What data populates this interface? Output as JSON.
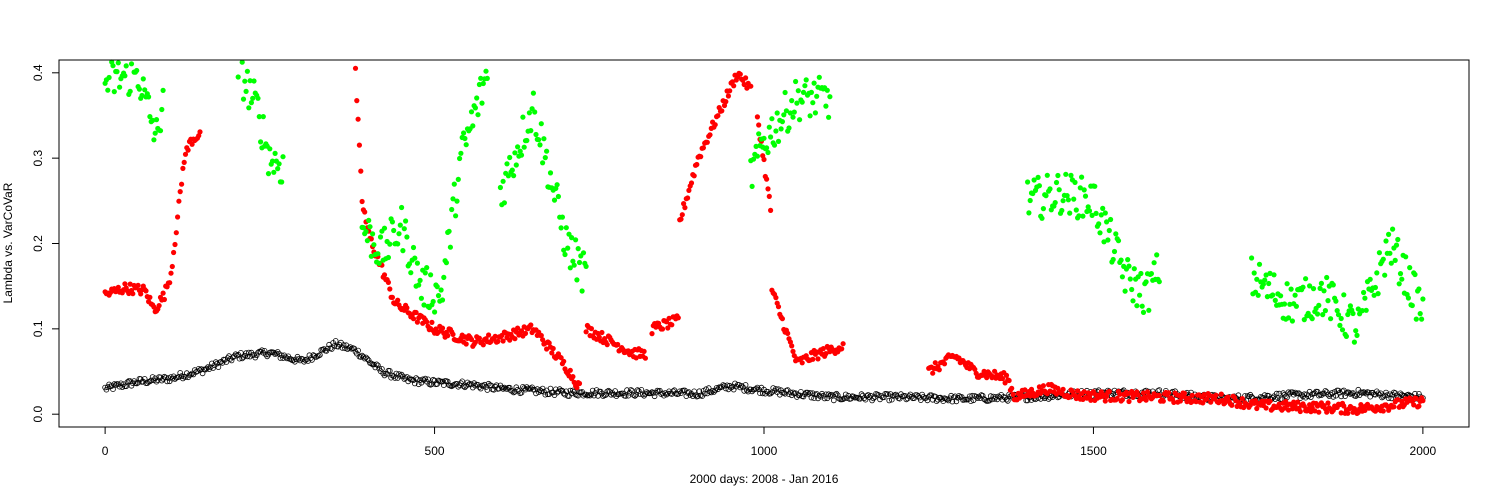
{
  "chart_data": {
    "type": "scatter",
    "title": "",
    "xlabel": "2000 days: 2008 - Jan 2016",
    "ylabel": "Lambda vs. VarCoVaR",
    "xlim": [
      -70,
      2070
    ],
    "ylim": [
      -0.015,
      0.415
    ],
    "xticks": [
      0,
      500,
      1000,
      1500,
      2000
    ],
    "yticks": [
      0.0,
      0.1,
      0.2,
      0.3,
      0.4
    ],
    "ytick_labels": [
      "0.0",
      "0.1",
      "0.2",
      "0.3",
      "0.4"
    ],
    "grid": false,
    "legend": "none",
    "n_days": 2000,
    "series": [
      {
        "color": "#000000",
        "marker": "open-circle",
        "profile": [
          [
            0,
            0.03
          ],
          [
            50,
            0.038
          ],
          [
            100,
            0.042
          ],
          [
            150,
            0.052
          ],
          [
            200,
            0.068
          ],
          [
            250,
            0.072
          ],
          [
            300,
            0.062
          ],
          [
            350,
            0.082
          ],
          [
            380,
            0.075
          ],
          [
            420,
            0.05
          ],
          [
            460,
            0.04
          ],
          [
            500,
            0.037
          ],
          [
            550,
            0.035
          ],
          [
            600,
            0.03
          ],
          [
            700,
            0.025
          ],
          [
            800,
            0.025
          ],
          [
            900,
            0.024
          ],
          [
            950,
            0.033
          ],
          [
            1000,
            0.028
          ],
          [
            1100,
            0.02
          ],
          [
            1200,
            0.02
          ],
          [
            1300,
            0.018
          ],
          [
            1400,
            0.02
          ],
          [
            1500,
            0.025
          ],
          [
            1600,
            0.025
          ],
          [
            1700,
            0.018
          ],
          [
            1800,
            0.022
          ],
          [
            1900,
            0.025
          ],
          [
            2000,
            0.02
          ]
        ]
      },
      {
        "color": "#ff0000",
        "marker": "filled-circle",
        "profile": [
          [
            0,
            0.14
          ],
          [
            30,
            0.148
          ],
          [
            60,
            0.145
          ],
          [
            75,
            0.122
          ],
          [
            90,
            0.14
          ],
          [
            100,
            0.165
          ],
          [
            110,
            0.23
          ],
          [
            120,
            0.3
          ],
          [
            130,
            0.32
          ],
          [
            145,
            0.33
          ],
          null,
          [
            380,
            0.4
          ],
          [
            390,
            0.25
          ],
          [
            400,
            0.21
          ],
          [
            440,
            0.13
          ],
          [
            500,
            0.1
          ],
          [
            560,
            0.085
          ],
          [
            600,
            0.09
          ],
          [
            650,
            0.1
          ],
          [
            700,
            0.055
          ],
          [
            720,
            0.032
          ],
          null,
          [
            730,
            0.1
          ],
          [
            800,
            0.072
          ],
          [
            820,
            0.07
          ],
          null,
          [
            830,
            0.1
          ],
          [
            870,
            0.11
          ],
          null,
          [
            870,
            0.22
          ],
          [
            900,
            0.3
          ],
          [
            930,
            0.35
          ],
          [
            960,
            0.4
          ],
          [
            980,
            0.38
          ],
          null,
          [
            990,
            0.35
          ],
          [
            1010,
            0.24
          ],
          null,
          [
            1010,
            0.15
          ],
          [
            1050,
            0.06
          ],
          [
            1080,
            0.07
          ],
          [
            1120,
            0.08
          ],
          null,
          [
            1250,
            0.05
          ],
          [
            1290,
            0.068
          ],
          [
            1320,
            0.05
          ],
          [
            1370,
            0.042
          ],
          [
            1380,
            0.02
          ],
          [
            1430,
            0.03
          ],
          [
            1480,
            0.022
          ],
          [
            1600,
            0.02
          ],
          [
            1700,
            0.018
          ],
          [
            1750,
            0.01
          ],
          [
            1850,
            0.008
          ],
          [
            1900,
            0.006
          ],
          [
            2000,
            0.015
          ]
        ]
      },
      {
        "color": "#00ff00",
        "marker": "filled-circle",
        "profile": [
          [
            0,
            0.39
          ],
          [
            50,
            0.4
          ],
          [
            60,
            0.37
          ],
          [
            80,
            0.32
          ],
          [
            90,
            0.4
          ],
          null,
          [
            200,
            0.41
          ],
          [
            230,
            0.36
          ],
          [
            250,
            0.3
          ],
          [
            270,
            0.29
          ],
          null,
          [
            390,
            0.22
          ],
          [
            420,
            0.19
          ],
          [
            450,
            0.22
          ],
          [
            480,
            0.15
          ],
          [
            510,
            0.14
          ],
          [
            540,
            0.3
          ],
          [
            580,
            0.4
          ],
          null,
          [
            600,
            0.26
          ],
          [
            650,
            0.36
          ],
          [
            700,
            0.2
          ],
          [
            730,
            0.16
          ],
          null,
          [
            980,
            0.28
          ],
          [
            1000,
            0.32
          ],
          [
            1050,
            0.37
          ],
          [
            1100,
            0.37
          ],
          null,
          [
            1400,
            0.25
          ],
          [
            1450,
            0.26
          ],
          [
            1500,
            0.25
          ],
          [
            1550,
            0.16
          ],
          [
            1580,
            0.14
          ],
          [
            1600,
            0.17
          ],
          null,
          [
            1740,
            0.16
          ],
          [
            1800,
            0.13
          ],
          [
            1850,
            0.14
          ],
          [
            1900,
            0.1
          ],
          [
            1950,
            0.2
          ],
          [
            2000,
            0.12
          ]
        ]
      }
    ]
  }
}
